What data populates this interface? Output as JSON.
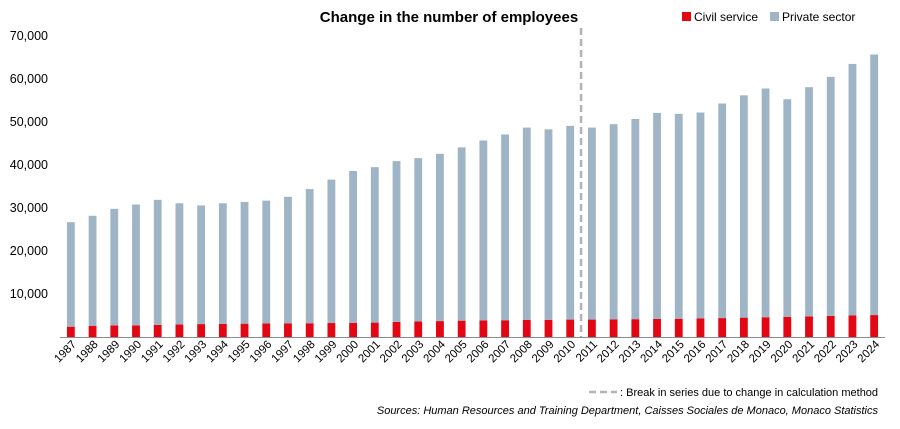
{
  "chart_data": {
    "type": "bar",
    "stacked": true,
    "title": "Change in the number of employees",
    "categories": [
      "1987",
      "1988",
      "1989",
      "1990",
      "1991",
      "1992",
      "1993",
      "1994",
      "1995",
      "1996",
      "1997",
      "1998",
      "1999",
      "2000",
      "2001",
      "2002",
      "2003",
      "2004",
      "2005",
      "2006",
      "2007",
      "2008",
      "2009",
      "2010",
      "2011",
      "2012",
      "2013",
      "2014",
      "2015",
      "2016",
      "2017",
      "2018",
      "2019",
      "2020",
      "2021",
      "2022",
      "2023",
      "2024"
    ],
    "series": [
      {
        "name": "Civil service",
        "color": "#e30613",
        "values": [
          2400,
          2600,
          2700,
          2700,
          2800,
          2900,
          3000,
          3050,
          3100,
          3150,
          3150,
          3200,
          3250,
          3300,
          3350,
          3500,
          3600,
          3700,
          3800,
          3850,
          3900,
          3950,
          4000,
          4050,
          4050,
          4100,
          4150,
          4200,
          4250,
          4300,
          4400,
          4500,
          4600,
          4700,
          4800,
          4900,
          5000,
          5100
        ]
      },
      {
        "name": "Private sector",
        "color": "#9fb5c6",
        "values": [
          24300,
          25600,
          27100,
          28100,
          29100,
          28200,
          27600,
          28050,
          28300,
          28550,
          29450,
          31200,
          33350,
          35300,
          36150,
          37400,
          38000,
          38900,
          40300,
          41850,
          43200,
          44750,
          44300,
          45050,
          44650,
          45400,
          46550,
          47900,
          47650,
          47900,
          49900,
          51700,
          53200,
          50600,
          53300,
          55600,
          58500,
          60600
        ]
      }
    ],
    "ylim": [
      0,
      70000
    ],
    "yticks": [
      "70,000",
      "60,000",
      "50,000",
      "40,000",
      "30,000",
      "20,000",
      "10,000",
      ""
    ],
    "ytick_values": [
      70000,
      60000,
      50000,
      40000,
      30000,
      20000,
      10000,
      0
    ],
    "grid": false,
    "legend": "top-right",
    "break_after": "2010",
    "break_note": ": Break in series due to change in calculation method",
    "source": "Sources: Human Resources and Training Department, Caisses Sociales de Monaco, Monaco Statistics"
  }
}
